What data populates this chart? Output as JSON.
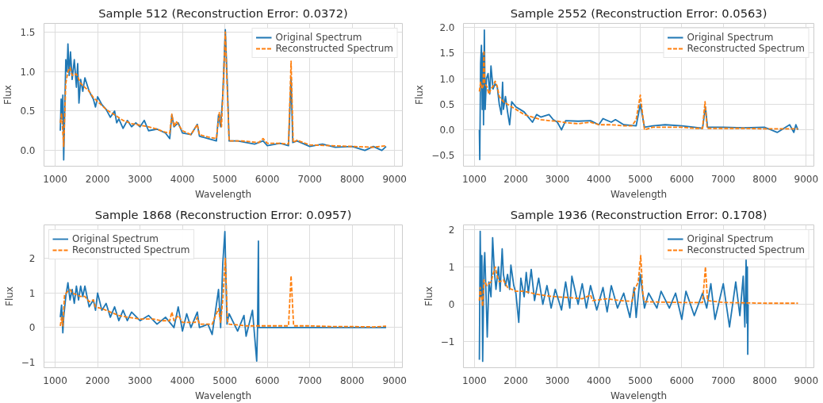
{
  "chart_data": [
    {
      "type": "line",
      "title": "Sample 512 (Reconstruction Error: 0.0372)",
      "xlabel": "Wavelength",
      "ylabel": "Flux",
      "xlim": [
        736,
        9184
      ],
      "ylim": [
        -0.2,
        1.61
      ],
      "xticks": [
        1000,
        2000,
        3000,
        4000,
        5000,
        6000,
        7000,
        8000,
        9000
      ],
      "yticks": [
        {
          "value": 0,
          "label": "0.0"
        },
        0.5,
        {
          "value": 1,
          "label": "1.0"
        },
        1.5
      ],
      "grid": true,
      "legend": "top right",
      "marker": "none",
      "series": [
        {
          "name": "Original Spectrum",
          "color": "#1f77b4",
          "line_style": "solid",
          "x": [
            1120,
            1140,
            1160,
            1180,
            1200,
            1220,
            1250,
            1280,
            1300,
            1330,
            1360,
            1400,
            1450,
            1500,
            1530,
            1560,
            1600,
            1650,
            1700,
            1800,
            1900,
            1950,
            2000,
            2100,
            2200,
            2300,
            2400,
            2450,
            2500,
            2600,
            2700,
            2800,
            2900,
            3000,
            3100,
            3200,
            3400,
            3600,
            3700,
            3750,
            3800,
            3900,
            4000,
            4200,
            4350,
            4400,
            4600,
            4800,
            4850,
            4900,
            4950,
            5010,
            5060,
            5100,
            5300,
            5500,
            5700,
            5900,
            6000,
            6300,
            6500,
            6560,
            6600,
            6700,
            7000,
            7300,
            7600,
            8000,
            8300,
            8500,
            8700,
            8800
          ],
          "values": [
            0.25,
            0.65,
            0.4,
            0.7,
            -0.12,
            0.4,
            1.15,
            1.0,
            1.35,
            0.95,
            1.25,
            0.9,
            1.15,
            0.8,
            1.1,
            0.6,
            0.9,
            0.75,
            0.92,
            0.75,
            0.65,
            0.55,
            0.68,
            0.58,
            0.52,
            0.42,
            0.5,
            0.35,
            0.4,
            0.28,
            0.38,
            0.3,
            0.35,
            0.3,
            0.38,
            0.25,
            0.27,
            0.22,
            0.15,
            0.45,
            0.3,
            0.35,
            0.22,
            0.2,
            0.33,
            0.18,
            0.15,
            0.12,
            0.45,
            0.3,
            0.7,
            1.53,
            0.8,
            0.12,
            0.12,
            0.1,
            0.08,
            0.12,
            0.06,
            0.09,
            0.06,
            0.93,
            0.1,
            0.12,
            0.05,
            0.08,
            0.04,
            0.05,
            0.0,
            0.05,
            0.0,
            0.05
          ]
        },
        {
          "name": "Reconstructed Spectrum",
          "color": "#ff7f0e",
          "line_style": "dashed",
          "x": [
            1120,
            1150,
            1200,
            1250,
            1300,
            1350,
            1400,
            1500,
            1600,
            1700,
            1800,
            1900,
            2000,
            2200,
            2400,
            2600,
            2800,
            3000,
            3200,
            3400,
            3600,
            3700,
            3750,
            3800,
            3850,
            4000,
            4200,
            4350,
            4400,
            4600,
            4800,
            4870,
            4920,
            4960,
            5010,
            5060,
            5100,
            5400,
            5800,
            5900,
            6000,
            6300,
            6500,
            6560,
            6610,
            6700,
            7000,
            7500,
            8000,
            8500,
            8800
          ],
          "values": [
            0.35,
            0.47,
            0.05,
            0.85,
            1.0,
            1.05,
            0.95,
            0.97,
            0.85,
            0.8,
            0.75,
            0.67,
            0.62,
            0.52,
            0.45,
            0.38,
            0.34,
            0.32,
            0.3,
            0.27,
            0.23,
            0.22,
            0.46,
            0.3,
            0.37,
            0.25,
            0.2,
            0.33,
            0.2,
            0.17,
            0.15,
            0.48,
            0.3,
            0.8,
            1.5,
            0.7,
            0.12,
            0.12,
            0.1,
            0.15,
            0.09,
            0.09,
            0.08,
            1.13,
            0.1,
            0.13,
            0.07,
            0.06,
            0.05,
            0.04,
            0.06
          ]
        }
      ]
    },
    {
      "type": "line",
      "title": "Sample 2552 (Reconstruction Error: 0.0563)",
      "xlabel": "Wavelength",
      "ylabel": "Flux",
      "xlim": [
        736,
        9184
      ],
      "ylim": [
        -0.71,
        2.08
      ],
      "xticks": [
        1000,
        2000,
        3000,
        4000,
        5000,
        6000,
        7000,
        8000,
        9000
      ],
      "yticks": [
        {
          "value": -0.5,
          "label": "−0.5"
        },
        {
          "value": 0,
          "label": "0.0"
        },
        0.5,
        {
          "value": 1,
          "label": "1.0"
        },
        1.5,
        {
          "value": 2,
          "label": "2.0"
        }
      ],
      "grid": true,
      "legend": "top right",
      "marker": "none",
      "series": [
        {
          "name": "Original Spectrum",
          "color": "#1f77b4",
          "line_style": "solid",
          "x": [
            1120,
            1130,
            1150,
            1170,
            1190,
            1210,
            1220,
            1240,
            1260,
            1290,
            1330,
            1370,
            1400,
            1450,
            1500,
            1550,
            1600,
            1650,
            1680,
            1700,
            1750,
            1800,
            1850,
            1900,
            2000,
            2100,
            2200,
            2300,
            2400,
            2500,
            2600,
            2800,
            2900,
            3000,
            3100,
            3200,
            3500,
            3800,
            4000,
            4100,
            4300,
            4400,
            4600,
            4900,
            5000,
            5100,
            5300,
            5600,
            6000,
            6300,
            6500,
            6570,
            6620,
            7000,
            7500,
            8000,
            8300,
            8600,
            8700,
            8750,
            8800
          ],
          "values": [
            0.0,
            -0.58,
            1.3,
            1.65,
            0.4,
            1.5,
            0.1,
            1.95,
            0.4,
            1.0,
            1.1,
            0.7,
            1.25,
            0.8,
            0.9,
            0.85,
            0.5,
            0.3,
            0.93,
            0.4,
            0.65,
            0.35,
            0.1,
            0.55,
            0.45,
            0.4,
            0.35,
            0.25,
            0.15,
            0.3,
            0.25,
            0.3,
            0.2,
            0.15,
            0.0,
            0.18,
            0.17,
            0.18,
            0.1,
            0.22,
            0.15,
            0.2,
            0.1,
            0.08,
            0.5,
            0.05,
            0.08,
            0.1,
            0.08,
            0.05,
            0.03,
            0.45,
            0.05,
            0.05,
            0.04,
            0.05,
            -0.05,
            0.1,
            -0.05,
            0.1,
            0.0
          ]
        },
        {
          "name": "Reconstructed Spectrum",
          "color": "#ff7f0e",
          "line_style": "dashed",
          "x": [
            1120,
            1150,
            1180,
            1210,
            1230,
            1250,
            1300,
            1350,
            1400,
            1450,
            1500,
            1550,
            1600,
            1700,
            1800,
            1900,
            2000,
            2200,
            2400,
            2600,
            2800,
            3000,
            3200,
            3500,
            3800,
            4000,
            4300,
            4600,
            4800,
            4900,
            5000,
            5100,
            5300,
            5600,
            6000,
            6300,
            6500,
            6560,
            6610,
            7000,
            7500,
            8000,
            8500,
            8800
          ],
          "values": [
            0.75,
            0.93,
            0.8,
            0.85,
            1.55,
            0.9,
            0.85,
            0.7,
            0.8,
            0.85,
            0.95,
            0.85,
            0.65,
            0.55,
            0.5,
            0.45,
            0.4,
            0.3,
            0.25,
            0.2,
            0.18,
            0.17,
            0.14,
            0.12,
            0.15,
            0.1,
            0.1,
            0.08,
            0.08,
            0.2,
            0.68,
            0.0,
            0.05,
            0.05,
            0.05,
            0.03,
            0.03,
            0.55,
            0.03,
            0.03,
            0.03,
            0.02,
            0.02,
            0.02
          ]
        }
      ]
    },
    {
      "type": "line",
      "title": "Sample 1868 (Reconstruction Error: 0.0957)",
      "xlabel": "Wavelength",
      "ylabel": "Flux",
      "xlim": [
        736,
        9184
      ],
      "ylim": [
        -1.16,
        2.97
      ],
      "xticks": [
        1000,
        2000,
        3000,
        4000,
        5000,
        6000,
        7000,
        8000,
        9000
      ],
      "yticks": [
        {
          "value": -1,
          "label": "−1"
        },
        0,
        1,
        2
      ],
      "grid": true,
      "legend": "top left",
      "marker": "none",
      "series": [
        {
          "name": "Original Spectrum",
          "color": "#1f77b4",
          "line_style": "solid",
          "x": [
            1120,
            1150,
            1180,
            1200,
            1250,
            1300,
            1350,
            1400,
            1450,
            1500,
            1550,
            1600,
            1650,
            1700,
            1800,
            1900,
            1950,
            2000,
            2100,
            2200,
            2300,
            2400,
            2500,
            2600,
            2700,
            2800,
            3000,
            3200,
            3400,
            3600,
            3800,
            3900,
            4000,
            4100,
            4200,
            4350,
            4400,
            4600,
            4700,
            4850,
            4900,
            4950,
            5000,
            5050,
            5100,
            5300,
            5450,
            5500,
            5650,
            5750,
            5770,
            5790,
            5800,
            6000,
            7000,
            8000,
            8800
          ],
          "values": [
            0.3,
            0.65,
            -0.15,
            0.3,
            0.9,
            1.3,
            0.8,
            1.1,
            0.7,
            1.2,
            0.8,
            1.2,
            0.9,
            1.2,
            0.6,
            0.8,
            0.5,
            1.0,
            0.5,
            0.7,
            0.3,
            0.6,
            0.2,
            0.5,
            0.2,
            0.45,
            0.2,
            0.35,
            0.1,
            0.3,
            0.0,
            0.6,
            -0.1,
            0.4,
            0.0,
            0.45,
            0.0,
            0.1,
            -0.2,
            1.1,
            0.0,
            1.85,
            2.78,
            0.1,
            0.4,
            -0.1,
            0.35,
            -0.25,
            0.5,
            -0.97,
            0.0,
            2.5,
            0.0,
            0.0,
            0.0,
            0.0,
            0.0
          ]
        },
        {
          "name": "Reconstructed Spectrum",
          "color": "#ff7f0e",
          "line_style": "dashed",
          "x": [
            1120,
            1150,
            1180,
            1220,
            1300,
            1350,
            1400,
            1500,
            1600,
            1700,
            1800,
            1900,
            1950,
            2100,
            2300,
            2500,
            2700,
            3000,
            3300,
            3500,
            3700,
            3750,
            3800,
            3900,
            4000,
            4300,
            4350,
            4400,
            4700,
            4850,
            4900,
            4950,
            5010,
            5060,
            5100,
            5500,
            5800,
            6000,
            6300,
            6500,
            6560,
            6620,
            7000,
            7500,
            8000,
            8500,
            8800
          ],
          "values": [
            0.05,
            0.3,
            0.05,
            0.95,
            1.05,
            1.1,
            1.0,
            0.95,
            0.9,
            0.9,
            0.75,
            0.8,
            0.6,
            0.55,
            0.45,
            0.35,
            0.3,
            0.25,
            0.25,
            0.2,
            0.2,
            0.45,
            0.2,
            0.35,
            0.15,
            0.15,
            0.3,
            0.1,
            0.1,
            0.55,
            0.15,
            0.8,
            2.0,
            0.2,
            0.1,
            0.05,
            0.05,
            0.05,
            0.05,
            0.05,
            1.5,
            0.05,
            0.05,
            0.03,
            0.03,
            0.02,
            0.04
          ]
        }
      ]
    },
    {
      "type": "line",
      "title": "Sample 1936 (Reconstruction Error: 0.1708)",
      "xlabel": "Wavelength",
      "ylabel": "Flux",
      "xlim": [
        736,
        9184
      ],
      "ylim": [
        -1.69,
        2.12
      ],
      "xticks": [
        1000,
        2000,
        3000,
        4000,
        5000,
        6000,
        7000,
        8000,
        9000
      ],
      "yticks": [
        {
          "value": -1,
          "label": "−1"
        },
        0,
        1,
        2
      ],
      "grid": true,
      "legend": "top right",
      "marker": "none",
      "series": [
        {
          "name": "Original Spectrum",
          "color": "#1f77b4",
          "line_style": "solid",
          "x": [
            1120,
            1140,
            1160,
            1180,
            1200,
            1230,
            1250,
            1280,
            1310,
            1350,
            1400,
            1440,
            1480,
            1520,
            1580,
            1620,
            1670,
            1700,
            1750,
            1800,
            1850,
            1880,
            1950,
            2000,
            2070,
            2120,
            2200,
            2250,
            2300,
            2370,
            2450,
            2550,
            2650,
            2750,
            2850,
            2950,
            3100,
            3200,
            3300,
            3350,
            3500,
            3600,
            3700,
            3800,
            3950,
            4100,
            4200,
            4300,
            4450,
            4600,
            4750,
            4850,
            4900,
            5000,
            5100,
            5200,
            5400,
            5500,
            5700,
            5850,
            6000,
            6100,
            6300,
            6500,
            6600,
            6700,
            6800,
            7000,
            7150,
            7300,
            7400,
            7480,
            7520,
            7550,
            7570,
            7580,
            7590,
            7600
          ],
          "values": [
            -1.48,
            1.95,
            0.2,
            1.3,
            -1.52,
            1.0,
            1.38,
            0.3,
            -0.87,
            0.6,
            0.2,
            1.78,
            0.9,
            0.4,
            1.0,
            0.35,
            1.48,
            0.8,
            0.5,
            0.8,
            0.4,
            1.05,
            0.5,
            0.3,
            -0.48,
            0.7,
            0.2,
            0.85,
            0.3,
            0.93,
            0.1,
            0.7,
            0.0,
            0.5,
            -0.1,
            0.4,
            -0.15,
            0.6,
            -0.1,
            0.75,
            0.0,
            0.55,
            -0.1,
            0.5,
            -0.15,
            0.45,
            -0.2,
            0.5,
            -0.1,
            0.3,
            -0.35,
            0.45,
            -0.35,
            0.8,
            -0.1,
            0.3,
            -0.1,
            0.35,
            -0.1,
            0.3,
            -0.4,
            0.35,
            -0.3,
            0.3,
            -0.1,
            0.55,
            -0.4,
            0.55,
            -0.6,
            0.6,
            -0.3,
            0.75,
            -0.6,
            1.18,
            -0.5,
            1.0,
            -1.33,
            0.0
          ]
        },
        {
          "name": "Reconstructed Spectrum",
          "color": "#ff7f0e",
          "line_style": "dashed",
          "x": [
            1120,
            1140,
            1170,
            1200,
            1230,
            1300,
            1400,
            1500,
            1550,
            1600,
            1700,
            1800,
            1900,
            2000,
            2200,
            2500,
            2800,
            3000,
            3300,
            3600,
            3800,
            3850,
            4200,
            4500,
            4800,
            4850,
            4950,
            5010,
            5060,
            5100,
            5500,
            6000,
            6500,
            6570,
            6620,
            7000,
            7500,
            8000,
            8500,
            8800
          ],
          "values": [
            0.1,
            0.45,
            0.2,
            -0.05,
            0.65,
            0.5,
            0.6,
            1.0,
            0.75,
            0.6,
            0.65,
            0.45,
            0.4,
            0.35,
            0.35,
            0.27,
            0.22,
            0.2,
            0.18,
            0.15,
            0.25,
            0.1,
            0.15,
            0.1,
            0.08,
            0.35,
            0.6,
            1.3,
            0.3,
            0.07,
            0.06,
            0.05,
            0.05,
            1.0,
            0.1,
            0.05,
            0.04,
            0.03,
            0.03,
            0.03
          ]
        }
      ]
    }
  ]
}
